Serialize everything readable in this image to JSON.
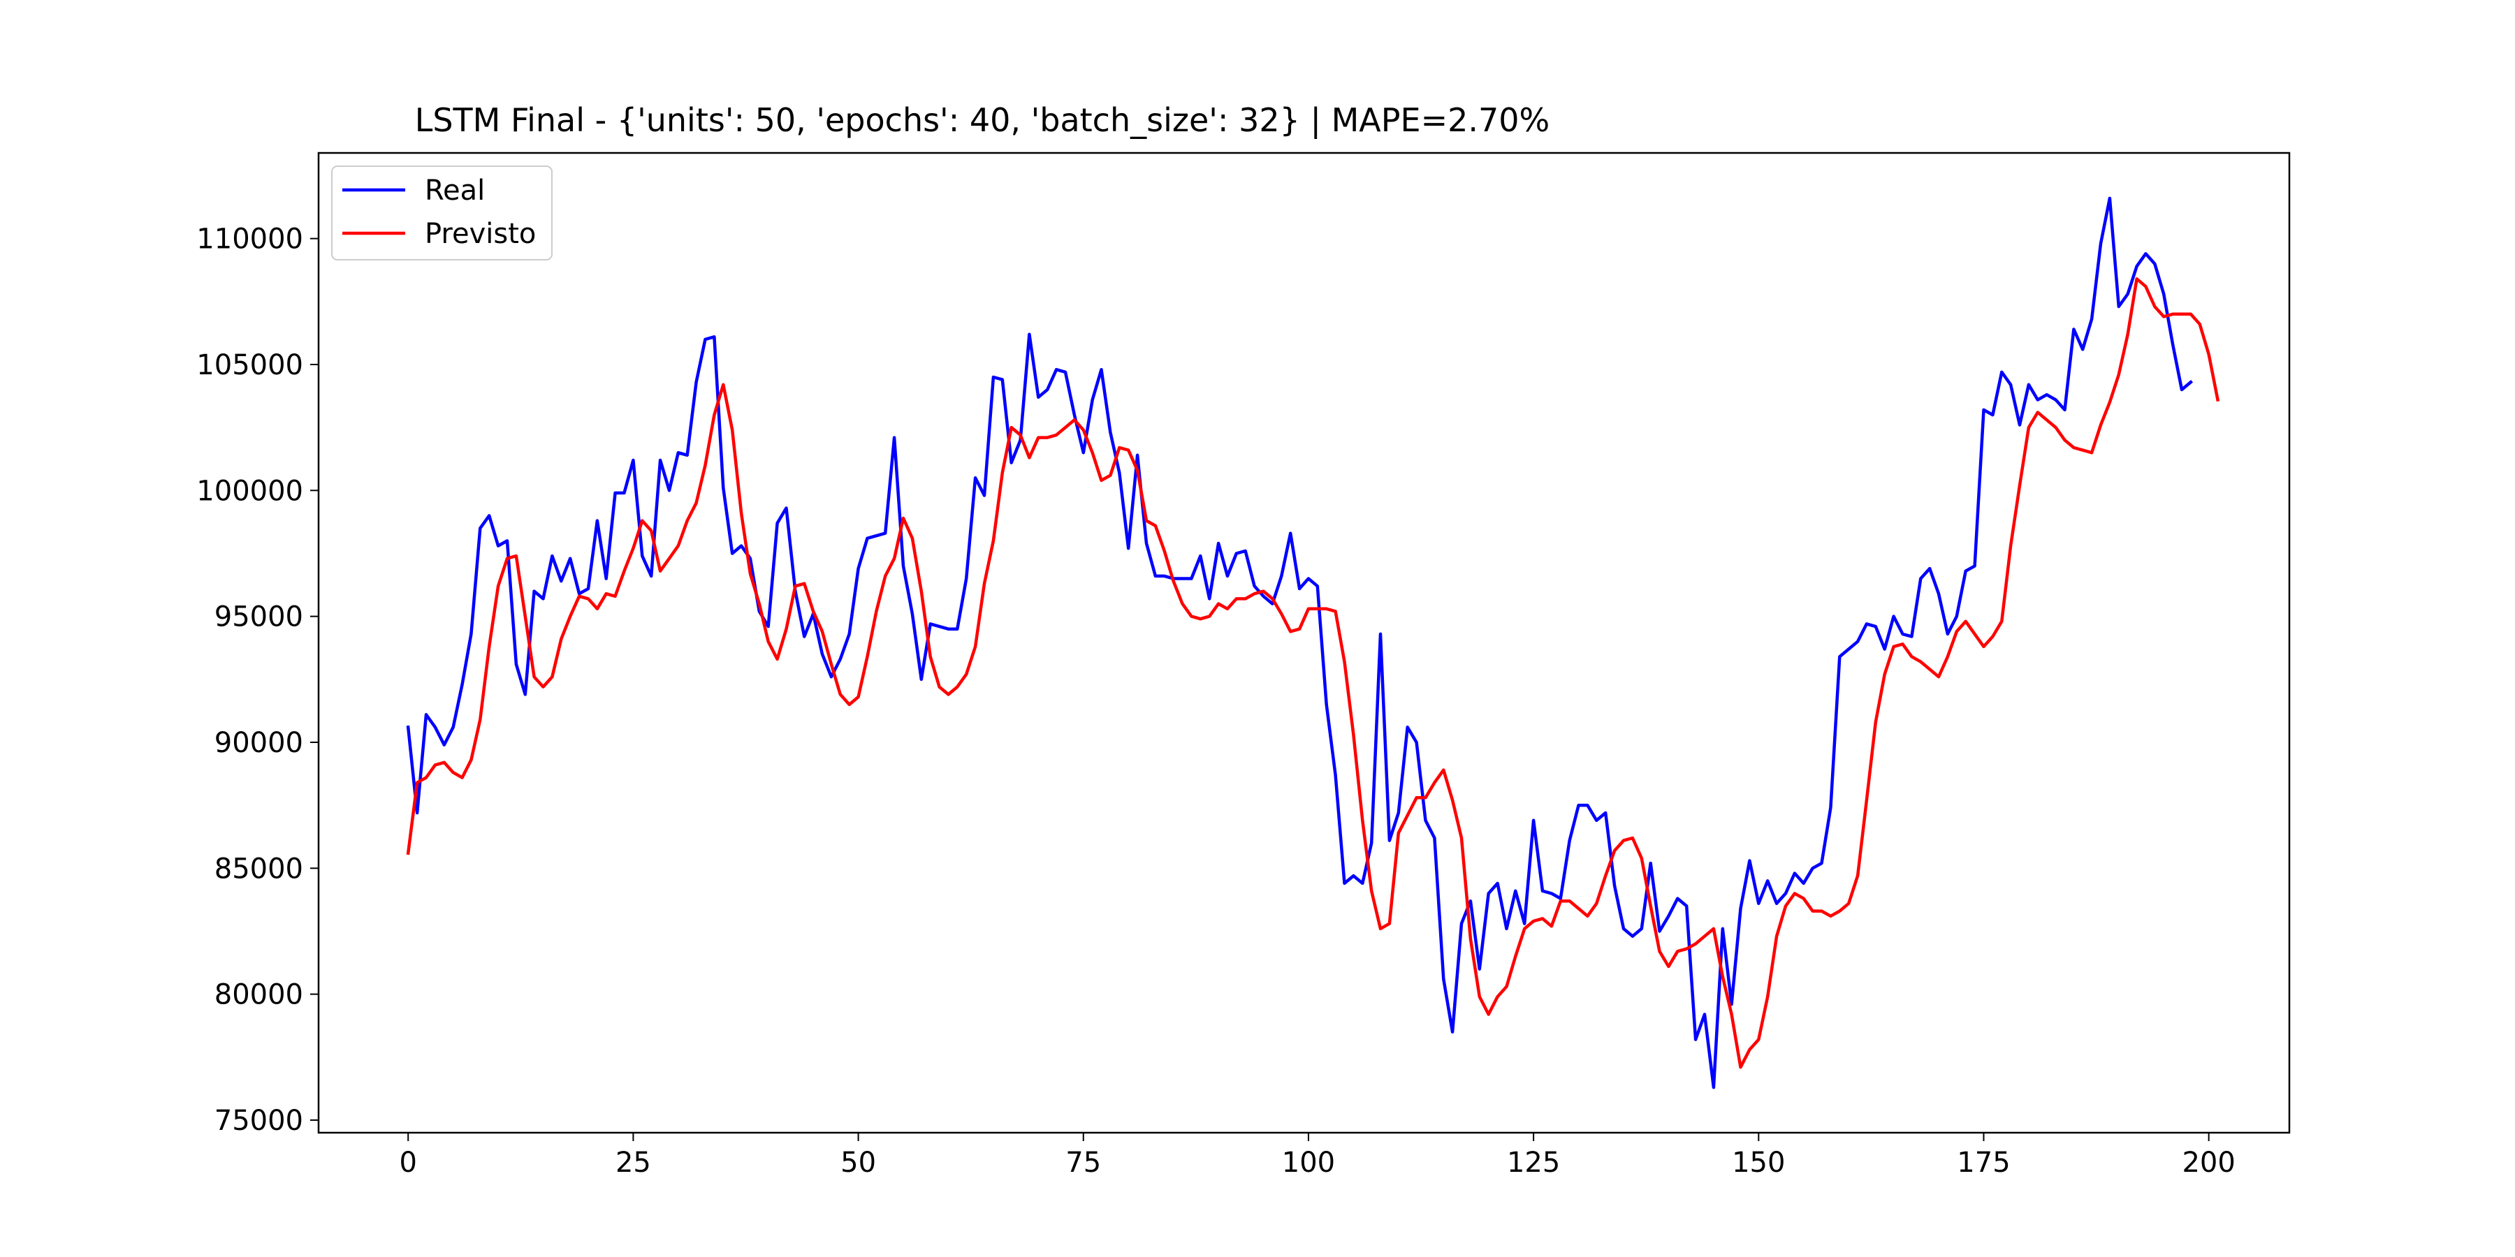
{
  "chart_data": {
    "type": "line",
    "title": "LSTM Final - {'units': 50, 'epochs': 40, 'batch_size': 32} | MAPE=2.70%",
    "xlabel": "",
    "ylabel": "",
    "xlim": [
      -9.95,
      208.95
    ],
    "ylim": [
      74500,
      113400
    ],
    "xticks": [
      0,
      25,
      50,
      75,
      100,
      125,
      150,
      175,
      200
    ],
    "yticks": [
      75000,
      80000,
      85000,
      90000,
      95000,
      100000,
      105000,
      110000
    ],
    "grid": false,
    "legend_position": "upper-left",
    "series": [
      {
        "name": "Real",
        "color": "#0000ff",
        "values": [
          90600,
          87200,
          91100,
          90600,
          89900,
          90600,
          92300,
          94300,
          98500,
          99000,
          97800,
          98000,
          93100,
          91900,
          96000,
          95700,
          97400,
          96400,
          97300,
          95900,
          96100,
          98800,
          96500,
          99900,
          99900,
          101200,
          97400,
          96600,
          101200,
          100000,
          101500,
          101400,
          104300,
          106000,
          106100,
          100100,
          97500,
          97800,
          97300,
          95200,
          94600,
          98700,
          99300,
          96000,
          94200,
          95100,
          93500,
          92600,
          93300,
          94300,
          96900,
          98100,
          98200,
          98300,
          102100,
          97000,
          95100,
          92500,
          94700,
          94600,
          94500,
          94500,
          96500,
          100500,
          99800,
          104500,
          104400,
          101100,
          102000,
          106200,
          103700,
          104000,
          104800,
          104700,
          103000,
          101500,
          103600,
          104800,
          102300,
          100700,
          97700,
          101400,
          97900,
          96600,
          96600,
          96500,
          96500,
          96500,
          97400,
          95700,
          97900,
          96600,
          97500,
          97600,
          96200,
          95800,
          95500,
          96600,
          98300,
          96100,
          96500,
          96200,
          91500,
          88700,
          84400,
          84700,
          84400,
          86000,
          94300,
          86100,
          87200,
          90600,
          90000,
          86900,
          86200,
          80600,
          78500,
          82800,
          83700,
          81000,
          84000,
          84400,
          82600,
          84100,
          82800,
          86900,
          84100,
          84000,
          83800,
          86100,
          87500,
          87500,
          86900,
          87200,
          84300,
          82600,
          82300,
          82600,
          85200,
          82500,
          83100,
          83800,
          83500,
          78200,
          79200,
          76300,
          82600,
          79600,
          83400,
          85300,
          83600,
          84500,
          83600,
          84000,
          84800,
          84400,
          85000,
          85200,
          87400,
          93400,
          93700,
          94000,
          94700,
          94600,
          93700,
          95000,
          94300,
          94200,
          96500,
          96900,
          95900,
          94300,
          95000,
          96800,
          97000,
          103200,
          103000,
          104700,
          104200,
          102600,
          104200,
          103600,
          103800,
          103600,
          103200,
          106400,
          105600,
          106800,
          109800,
          111600,
          107300,
          107800,
          108900,
          109400,
          109000,
          107800,
          105800,
          104000,
          104300
        ]
      },
      {
        "name": "Previsto",
        "color": "#ff0000",
        "values": [
          85600,
          88400,
          88600,
          89100,
          89200,
          88800,
          88600,
          89300,
          90900,
          93800,
          96200,
          97300,
          97400,
          95000,
          92600,
          92200,
          92600,
          94100,
          95000,
          95800,
          95700,
          95300,
          95900,
          95800,
          96800,
          97700,
          98800,
          98400,
          96800,
          97300,
          97800,
          98800,
          99500,
          101000,
          103000,
          104200,
          102400,
          99100,
          96700,
          95500,
          94000,
          93300,
          94500,
          96200,
          96300,
          95200,
          94400,
          93100,
          91900,
          91500,
          91800,
          93400,
          95200,
          96600,
          97300,
          98900,
          98100,
          96000,
          93400,
          92200,
          91900,
          92200,
          92700,
          93800,
          96300,
          98000,
          100700,
          102500,
          102200,
          101300,
          102100,
          102100,
          102200,
          102500,
          102800,
          102400,
          101500,
          100400,
          100600,
          101700,
          101600,
          100800,
          98800,
          98600,
          97600,
          96400,
          95500,
          95000,
          94900,
          95000,
          95500,
          95300,
          95700,
          95700,
          95900,
          96000,
          95700,
          95100,
          94400,
          94500,
          95300,
          95300,
          95300,
          95200,
          93200,
          90300,
          86900,
          84100,
          82600,
          82800,
          86400,
          87100,
          87800,
          87800,
          88400,
          88900,
          87700,
          86200,
          82200,
          79900,
          79200,
          79900,
          80300,
          81500,
          82600,
          82900,
          83000,
          82700,
          83700,
          83700,
          83400,
          83100,
          83600,
          84700,
          85700,
          86100,
          86200,
          85400,
          83500,
          81700,
          81100,
          81700,
          81800,
          82000,
          82300,
          82600,
          80700,
          79200,
          77100,
          77800,
          78200,
          79900,
          82300,
          83500,
          84000,
          83800,
          83300,
          83300,
          83100,
          83300,
          83600,
          84700,
          87700,
          90800,
          92700,
          93800,
          93900,
          93400,
          93200,
          92900,
          92600,
          93400,
          94400,
          94800,
          94300,
          93800,
          94200,
          94800,
          97800,
          100200,
          102500,
          103100,
          102800,
          102500,
          102000,
          101700,
          101600,
          101500,
          102600,
          103500,
          104600,
          106200,
          108400,
          108100,
          107300,
          106900,
          107000,
          107000,
          107000,
          106600,
          105400,
          103600
        ]
      }
    ]
  }
}
